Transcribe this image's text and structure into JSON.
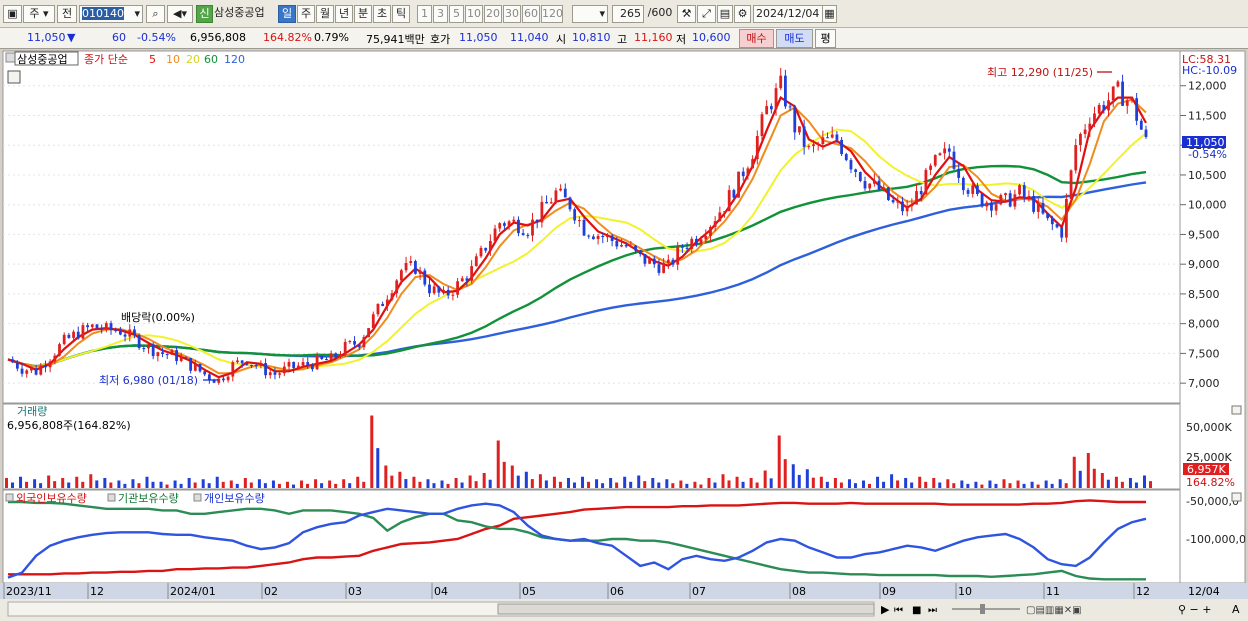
{
  "toolbar": {
    "market": "주",
    "period_mode": "전",
    "code": "010140",
    "new_badge": "신",
    "name": "삼성중공업",
    "periods": [
      "일",
      "주",
      "월",
      "년",
      "분",
      "초",
      "틱"
    ],
    "selected_period": "일",
    "minutes": [
      "1",
      "3",
      "5",
      "10",
      "20",
      "30",
      "60",
      "120"
    ],
    "count": "265",
    "count_max": "/600",
    "date": "2024/12/04"
  },
  "quote": {
    "price": "11,050",
    "change_arrow": "▼",
    "change": "60",
    "change_pct": "-0.54%",
    "volume": "6,956,808",
    "vol_ratio": "164.82%",
    "turnover_pct": "0.79%",
    "amount": "75,941백만",
    "bid_label": "호가",
    "bid1": "11,050",
    "bid2": "11,040",
    "open_label": "시",
    "open": "10,810",
    "high_label": "고",
    "high": "11,160",
    "low_label": "저",
    "low": "10,600",
    "buy_button": "매수",
    "sell_button": "매도",
    "avg_button": "평"
  },
  "legend": {
    "name": "삼성중공업",
    "price_label": "종가 단순",
    "ma": [
      "5",
      "10",
      "20",
      "60",
      "120"
    ]
  },
  "annotations": {
    "high": "최고 12,290 (11/25)",
    "low": "최저 6,980 (01/18)",
    "dividend": "배당락(0.00%)"
  },
  "right_info": {
    "lc": "LC:58.31",
    "hc": "HC:-10.09",
    "price_tag": "11,050",
    "pct_tag": "-0.54%"
  },
  "volume_panel": {
    "title": "거래량",
    "value": "6,956,808주(164.82%)",
    "tag_value": "6,957K",
    "tag_pct": "164.82%"
  },
  "holding_panel": {
    "labels": [
      "외국인보유수량",
      "기관보유수량",
      "개인보유수량"
    ]
  },
  "x_axis_labels": [
    "2023/11",
    "12",
    "2024/01",
    "02",
    "03",
    "04",
    "05",
    "06",
    "07",
    "08",
    "09",
    "10",
    "11",
    "12"
  ],
  "right_date": "12/04",
  "colors": {
    "up": "#e02020",
    "down": "#1f3fd8",
    "ma5": "#e01010",
    "ma10": "#f08c1c",
    "ma20": "#f2f22c",
    "ma60": "#119138",
    "ma120": "#2e5fdc"
  },
  "chart_data": {
    "type": "candlestick",
    "y_ticks": [
      7000,
      7500,
      8000,
      8500,
      9000,
      9500,
      10000,
      10500,
      11000,
      11500,
      12000
    ],
    "y_tick_labels": [
      "7,000",
      "7,500",
      "8,000",
      "8,500",
      "9,000",
      "9,500",
      "10,000",
      "10,500",
      "11,000",
      "11,500",
      "12,000"
    ],
    "ylim": [
      6700,
      12550
    ],
    "price_series": {
      "name": "종가",
      "values": [
        7400,
        7250,
        7200,
        7450,
        7700,
        7850,
        7950,
        7900,
        7880,
        7750,
        7600,
        7500,
        7450,
        7300,
        7150,
        7050,
        7300,
        7400,
        7250,
        7150,
        7250,
        7300,
        7350,
        7400,
        7600,
        7700,
        8100,
        8500,
        8900,
        8950,
        8600,
        8450,
        8650,
        8900,
        9300,
        9700,
        9700,
        9600,
        9900,
        10200,
        10000,
        9600,
        9500,
        9400,
        9300,
        9100,
        9000,
        8950,
        9300,
        9450,
        9700,
        10000,
        10400,
        10900,
        11600,
        12000,
        11300,
        10900,
        11050,
        11100,
        10700,
        10400,
        10250,
        10000,
        9900,
        10300,
        10700,
        10900,
        10400,
        10100,
        10050,
        10050,
        10200,
        10000,
        9700,
        9550,
        11000,
        11500,
        11700,
        11900,
        11700,
        11050
      ]
    },
    "volume": {
      "label": "거래량",
      "values": [
        8,
        9,
        7,
        10,
        8,
        9,
        11,
        8,
        6,
        7,
        9,
        5,
        6,
        8,
        7,
        9,
        6,
        8,
        7,
        6,
        5,
        6,
        7,
        6,
        7,
        9,
        58,
        18,
        13,
        9,
        7,
        6,
        8,
        10,
        12,
        38,
        18,
        13,
        11,
        9,
        8,
        9,
        7,
        8,
        9,
        10,
        8,
        7,
        6,
        5,
        8,
        11,
        9,
        8,
        14,
        42,
        19,
        15,
        9,
        8,
        7,
        6,
        9,
        11,
        8,
        9,
        8,
        7,
        6,
        5,
        6,
        7,
        6,
        5,
        6,
        7,
        25,
        28,
        12,
        9,
        8,
        10
      ],
      "y_tick_labels": [
        "50,000K",
        "25,000K"
      ]
    },
    "holdings": {
      "y_tick_labels": [
        "-50,000,0",
        "-100,000,0"
      ],
      "foreign": [
        0.92,
        0.92,
        0.92,
        0.92,
        0.91,
        0.91,
        0.9,
        0.9,
        0.89,
        0.89,
        0.88,
        0.88,
        0.86,
        0.86,
        0.85,
        0.85,
        0.84,
        0.84,
        0.82,
        0.8,
        0.78,
        0.74,
        0.72,
        0.72,
        0.71,
        0.7,
        0.64,
        0.6,
        0.56,
        0.55,
        0.54,
        0.52,
        0.5,
        0.44,
        0.38,
        0.34,
        0.26,
        0.24,
        0.22,
        0.2,
        0.18,
        0.15,
        0.14,
        0.13,
        0.12,
        0.12,
        0.12,
        0.12,
        0.11,
        0.11,
        0.1,
        0.1,
        0.1,
        0.09,
        0.08,
        0.07,
        0.07,
        0.08,
        0.08,
        0.08,
        0.07,
        0.08,
        0.08,
        0.08,
        0.08,
        0.08,
        0.08,
        0.09,
        0.09,
        0.09,
        0.09,
        0.09,
        0.09,
        0.08,
        0.08,
        0.07,
        0.05,
        0.04,
        0.05,
        0.06,
        0.06,
        0.06
      ],
      "institution": [
        0.06,
        0.06,
        0.07,
        0.07,
        0.08,
        0.1,
        0.12,
        0.14,
        0.14,
        0.14,
        0.14,
        0.16,
        0.16,
        0.2,
        0.2,
        0.18,
        0.16,
        0.14,
        0.14,
        0.16,
        0.2,
        0.16,
        0.16,
        0.16,
        0.18,
        0.2,
        0.25,
        0.4,
        0.3,
        0.24,
        0.2,
        0.2,
        0.28,
        0.3,
        0.35,
        0.38,
        0.38,
        0.42,
        0.48,
        0.5,
        0.52,
        0.52,
        0.52,
        0.5,
        0.5,
        0.52,
        0.52,
        0.54,
        0.58,
        0.62,
        0.66,
        0.7,
        0.74,
        0.78,
        0.82,
        0.86,
        0.88,
        0.9,
        0.9,
        0.91,
        0.92,
        0.92,
        0.93,
        0.93,
        0.93,
        0.93,
        0.93,
        0.94,
        0.94,
        0.94,
        0.95,
        0.94,
        0.93,
        0.92,
        0.9,
        0.88,
        0.94,
        0.97,
        0.98,
        0.98,
        0.98,
        0.98
      ],
      "individual": [
        0.96,
        0.9,
        0.7,
        0.58,
        0.52,
        0.48,
        0.45,
        0.43,
        0.42,
        0.42,
        0.42,
        0.44,
        0.45,
        0.45,
        0.48,
        0.5,
        0.52,
        0.58,
        0.62,
        0.6,
        0.55,
        0.42,
        0.36,
        0.32,
        0.3,
        0.22,
        0.18,
        0.14,
        0.16,
        0.18,
        0.2,
        0.2,
        0.14,
        0.1,
        0.08,
        0.1,
        0.18,
        0.34,
        0.46,
        0.5,
        0.52,
        0.5,
        0.55,
        0.58,
        0.7,
        0.82,
        0.78,
        0.86,
        0.74,
        0.7,
        0.74,
        0.76,
        0.72,
        0.64,
        0.54,
        0.5,
        0.52,
        0.6,
        0.66,
        0.72,
        0.72,
        0.68,
        0.66,
        0.62,
        0.58,
        0.6,
        0.64,
        0.58,
        0.52,
        0.48,
        0.46,
        0.44,
        0.5,
        0.6,
        0.74,
        0.8,
        0.82,
        0.72,
        0.54,
        0.38,
        0.3,
        0.26
      ]
    }
  }
}
